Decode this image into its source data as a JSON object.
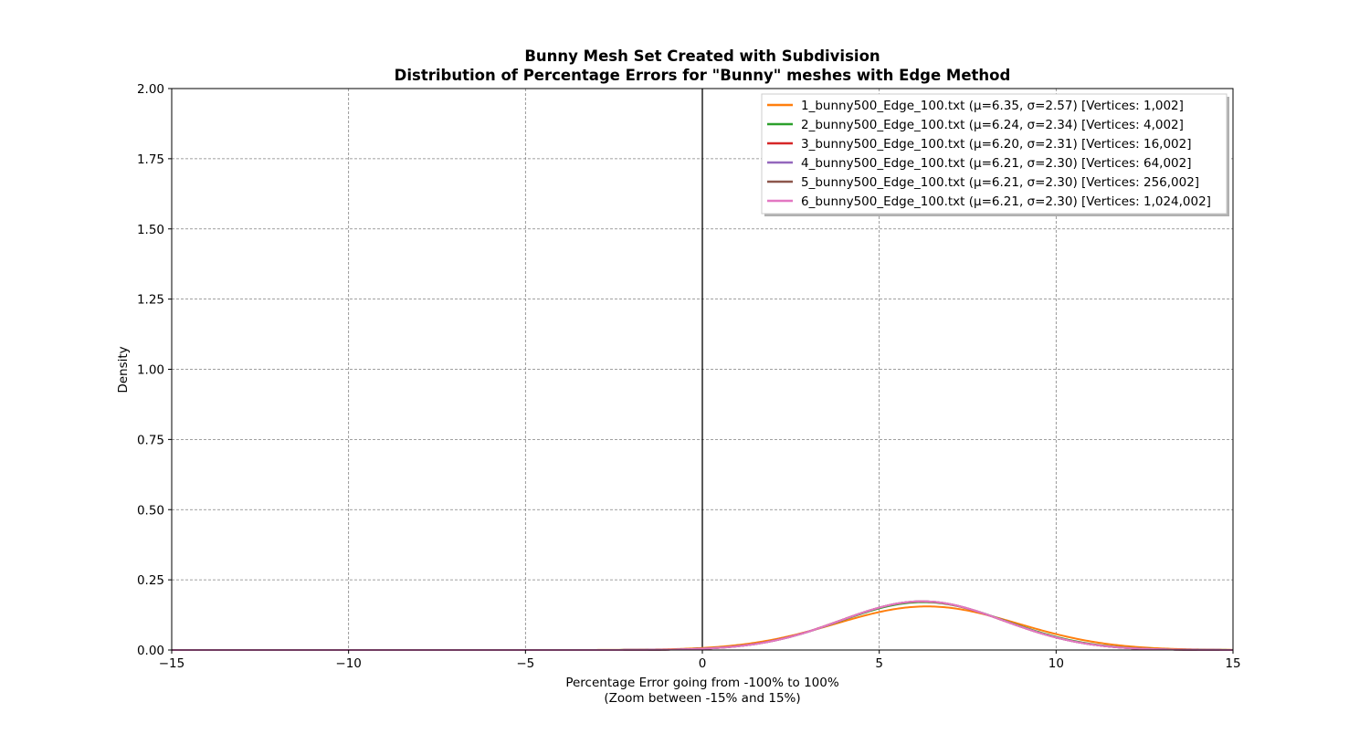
{
  "figure": {
    "title_line1": "Bunny Mesh Set Created with Subdivision",
    "title_line2": "Distribution of Percentage Errors for \"Bunny\" meshes with Edge Method"
  },
  "chart_data": {
    "type": "line",
    "title": "Bunny Mesh Set Created with Subdivision\nDistribution of Percentage Errors for \"Bunny\" meshes with Edge Method",
    "xlabel_line1": "Percentage Error going from -100% to 100%",
    "xlabel_line2": "(Zoom between -15% and 15%)",
    "ylabel": "Density",
    "xlim": [
      -15,
      15
    ],
    "ylim": [
      0,
      2.0
    ],
    "x_ticks": [
      -15,
      -10,
      -5,
      0,
      5,
      10,
      15
    ],
    "x_tick_labels": [
      "−15",
      "−10",
      "−5",
      "0",
      "5",
      "10",
      "15"
    ],
    "y_ticks": [
      0,
      0.25,
      0.5,
      0.75,
      1.0,
      1.25,
      1.5,
      1.75,
      2.0
    ],
    "y_tick_labels": [
      "0.00",
      "0.25",
      "0.50",
      "0.75",
      "1.00",
      "1.25",
      "1.50",
      "1.75",
      "2.00"
    ],
    "grid": true,
    "vertical_line_x": 0,
    "legend_position": "top-right",
    "series": [
      {
        "name": "1_bunny500_Edge_100.txt (μ=6.35, σ=2.57) [Vertices: 1,002]",
        "mu": 6.35,
        "sigma": 2.57,
        "color": "#ff7f0e"
      },
      {
        "name": "2_bunny500_Edge_100.txt (μ=6.24, σ=2.34) [Vertices: 4,002]",
        "mu": 6.24,
        "sigma": 2.34,
        "color": "#2ca02c"
      },
      {
        "name": "3_bunny500_Edge_100.txt (μ=6.20, σ=2.31) [Vertices: 16,002]",
        "mu": 6.2,
        "sigma": 2.31,
        "color": "#d62728"
      },
      {
        "name": "4_bunny500_Edge_100.txt (μ=6.21, σ=2.30) [Vertices: 64,002]",
        "mu": 6.21,
        "sigma": 2.3,
        "color": "#9467bd"
      },
      {
        "name": "5_bunny500_Edge_100.txt (μ=6.21, σ=2.30) [Vertices: 256,002]",
        "mu": 6.21,
        "sigma": 2.3,
        "color": "#8c564b"
      },
      {
        "name": "6_bunny500_Edge_100.txt (μ=6.21, σ=2.30) [Vertices: 1,024,002]",
        "mu": 6.21,
        "sigma": 2.3,
        "color": "#e377c2"
      }
    ]
  }
}
